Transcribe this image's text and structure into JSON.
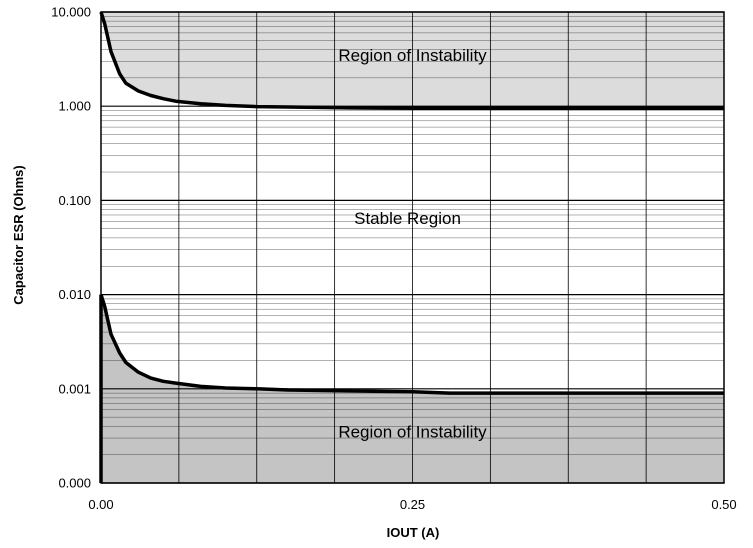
{
  "chart_data": {
    "type": "area",
    "xlabel": "IOUT (A)",
    "ylabel": "Capacitor ESR (Ohms)",
    "x_ticks": [
      {
        "value": 0,
        "label": "0.00"
      },
      {
        "value": 0.25,
        "label": "0.25"
      },
      {
        "value": 0.5,
        "label": "0.50"
      }
    ],
    "y_ticks": [
      {
        "decade": 4,
        "label": "10.000"
      },
      {
        "decade": 3,
        "label": "1.000"
      },
      {
        "decade": 2,
        "label": "0.100"
      },
      {
        "decade": 1,
        "label": "0.010"
      },
      {
        "decade": 0,
        "label": "0.001"
      },
      {
        "decade": -1,
        "label": "0.000"
      }
    ],
    "xlim": [
      0,
      0.5
    ],
    "ylim": [
      0.0001,
      10
    ],
    "y_scale": "log",
    "grid": true,
    "series": [
      {
        "role": "upper-boundary",
        "x": [
          0.0,
          0.003,
          0.008,
          0.015,
          0.02,
          0.03,
          0.04,
          0.05,
          0.06,
          0.08,
          0.1,
          0.125,
          0.15,
          0.2,
          0.25,
          0.3,
          0.35,
          0.4,
          0.45,
          0.5
        ],
        "y": [
          10,
          7.5,
          3.8,
          2.2,
          1.75,
          1.45,
          1.3,
          1.2,
          1.13,
          1.06,
          1.02,
          0.99,
          0.98,
          0.96,
          0.95,
          0.95,
          0.95,
          0.95,
          0.95,
          0.95
        ]
      },
      {
        "role": "lower-boundary",
        "x": [
          0.0,
          0.003,
          0.008,
          0.015,
          0.02,
          0.03,
          0.04,
          0.05,
          0.06,
          0.08,
          0.1,
          0.125,
          0.15,
          0.2,
          0.25,
          0.28,
          0.3,
          0.35,
          0.4,
          0.45,
          0.5
        ],
        "y": [
          0.01,
          0.0075,
          0.0038,
          0.0024,
          0.0019,
          0.0015,
          0.0013,
          0.0012,
          0.00115,
          0.00106,
          0.00102,
          0.001,
          0.00097,
          0.00095,
          0.00093,
          0.0009,
          0.0009,
          0.0009,
          0.0009,
          0.0009,
          0.0009
        ]
      }
    ],
    "annotations": [
      {
        "text": "Region of Instability",
        "x": 0.25,
        "y": 3.5
      },
      {
        "text": "Stable Region",
        "x": 0.246,
        "y": 0.065
      },
      {
        "text": "Region of Instability",
        "x": 0.25,
        "y": 0.00035
      }
    ]
  },
  "colors": {
    "upper_region": "#dcdcdc",
    "lower_region": "#c4c4c4",
    "line": "#000000",
    "grid": "#000000",
    "background": "#ffffff"
  }
}
